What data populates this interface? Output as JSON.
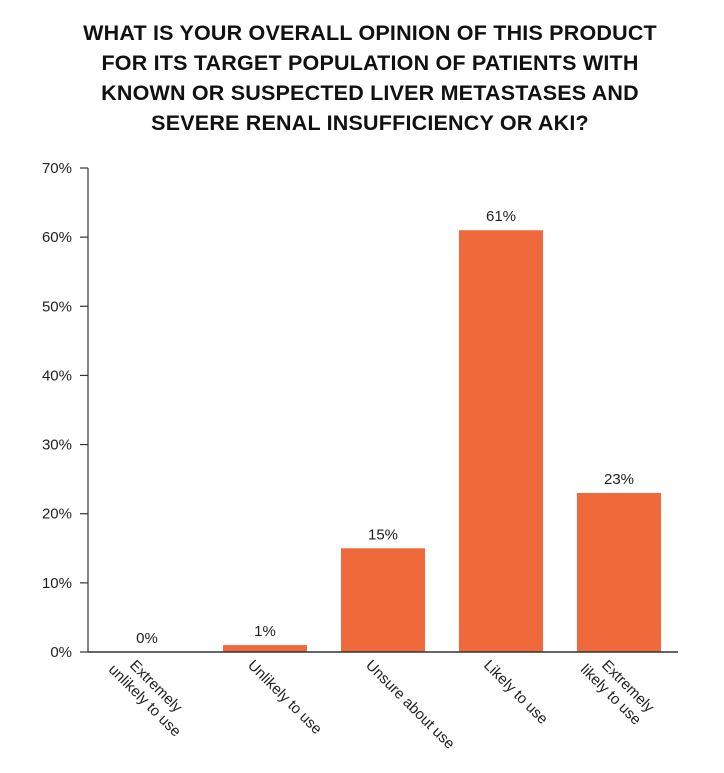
{
  "title_lines": [
    "WHAT IS YOUR OVERALL OPINION OF THIS PRODUCT",
    "FOR ITS TARGET POPULATION OF PATIENTS WITH",
    "KNOWN OR SUSPECTED LIVER METASTASES AND",
    "SEVERE RENAL INSUFFICIENCY OR AKI?"
  ],
  "colors": {
    "bar": "#f0693a",
    "axis": "#333333",
    "text": "#222222"
  },
  "chart_data": {
    "type": "bar",
    "title": "WHAT IS YOUR OVERALL OPINION OF THIS PRODUCT FOR ITS TARGET POPULATION OF PATIENTS WITH KNOWN OR SUSPECTED LIVER METASTASES AND SEVERE RENAL INSUFFICIENCY OR AKI?",
    "categories": [
      [
        "Extremely",
        "unlikely to use"
      ],
      [
        "Unlikely to use"
      ],
      [
        "Unsure about use"
      ],
      [
        "Likely to use"
      ],
      [
        "Extremely",
        "likely to use"
      ]
    ],
    "values": [
      0,
      1,
      15,
      61,
      23
    ],
    "data_labels": [
      "0%",
      "1%",
      "15%",
      "61%",
      "23%"
    ],
    "ylim": [
      0,
      70
    ],
    "yticks": [
      0,
      10,
      20,
      30,
      40,
      50,
      60,
      70
    ],
    "ytick_labels": [
      "0%",
      "10%",
      "20%",
      "30%",
      "40%",
      "50%",
      "60%",
      "70%"
    ],
    "xlabel": "",
    "ylabel": "",
    "grid": false,
    "legend": "none"
  }
}
